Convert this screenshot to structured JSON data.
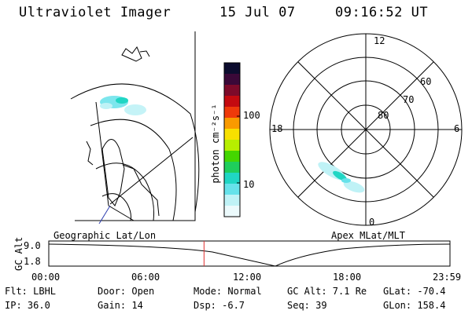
{
  "header": {
    "instrument": "Ultraviolet Imager",
    "date": "15 Jul 07",
    "time": "09:16:52 UT"
  },
  "geo_panel": {
    "label": "Geographic Lat/Lon"
  },
  "colorbar": {
    "unit_label": "photon cm⁻²s⁻¹",
    "tick_labels": [
      "100",
      "10"
    ],
    "colors": [
      "#0c0c2e",
      "#3a0838",
      "#7d0a2a",
      "#c40a10",
      "#ef3a0a",
      "#f99a00",
      "#f8e000",
      "#b6ee00",
      "#44d600",
      "#1fce5c",
      "#20d6c4",
      "#66e2ea",
      "#bff2f6",
      "#ecfafc"
    ]
  },
  "polar_panel": {
    "label": "Apex MLat/MLT",
    "mlt_labels": [
      "12",
      "18",
      "6",
      "0"
    ],
    "lat_labels": [
      "60",
      "70",
      "80"
    ]
  },
  "timeline": {
    "y_axis_label": "GC Alt",
    "y_ticks": [
      "9.0",
      "1.8"
    ],
    "x_ticks": [
      "00:00",
      "06:00",
      "12:00",
      "18:00",
      "23:59"
    ],
    "marker_time": "09:16:52",
    "marker_color": "#e03030"
  },
  "info": {
    "filter": "Flt: LBHL",
    "ip": "IP: 36.0",
    "door": "Door: Open",
    "gain": "Gain: 14",
    "mode": "Mode: Normal",
    "dsp": "Dsp:   -6.7",
    "gc_alt": "GC Alt: 7.1 Re",
    "seq": "Seq: 39",
    "glat": "GLat: -70.4",
    "glon": "GLon: 158.4"
  }
}
